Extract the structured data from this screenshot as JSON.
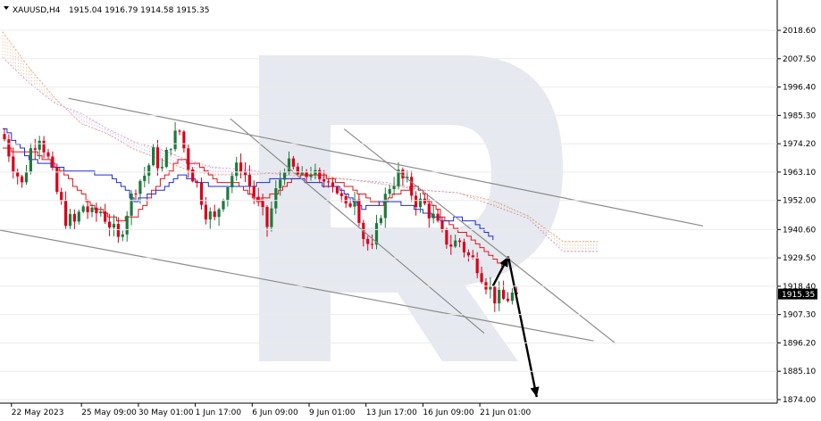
{
  "header": {
    "symbol": "XAUUSD,H4",
    "ohlc": "1915.04 1916.79 1914.58 1915.35"
  },
  "colors": {
    "bull": "#1e7a3c",
    "bear": "#d9001b",
    "tenkan": "#e0151b",
    "kijun": "#1b2bd6",
    "cloud_a": "#e8a070",
    "cloud_b": "#c78ad8",
    "channel": "#8c8c8c",
    "arrow": "#000000",
    "watermark": "#dde1ea",
    "price_tag": "#000000"
  },
  "chart_data": {
    "type": "candlestick",
    "instrument": "XAUUSD",
    "timeframe": "H4",
    "last_price": 1915.35,
    "current_price_label": "1915.35",
    "ylim": [
      1874.0,
      2023.5
    ],
    "y_ticks": [
      2018.6,
      2007.5,
      1996.4,
      1985.3,
      1974.2,
      1963.1,
      1952.0,
      1940.6,
      1929.5,
      1918.4,
      1907.3,
      1896.2,
      1885.1,
      1874.0
    ],
    "y_tick_labels": [
      "2018.60",
      "2007.50",
      "1996.40",
      "1985.30",
      "1974.20",
      "1963.10",
      "1952.00",
      "1940.60",
      "1929.50",
      "1918.40",
      "1907.30",
      "1896.20",
      "1885.10",
      "1874.00"
    ],
    "x_ticks": [
      {
        "label": "22 May 2023",
        "bar": 2
      },
      {
        "label": "25 May 09:00",
        "bar": 18
      },
      {
        "label": "30 May 01:00",
        "bar": 31
      },
      {
        "label": "1 Jun 17:00",
        "bar": 44
      },
      {
        "label": "6 Jun 09:00",
        "bar": 57
      },
      {
        "label": "9 Jun 01:00",
        "bar": 70
      },
      {
        "label": "13 Jun 17:00",
        "bar": 83
      },
      {
        "label": "16 Jun 09:00",
        "bar": 96
      },
      {
        "label": "21 Jun 01:00",
        "bar": 109
      }
    ],
    "total_bars": 118,
    "candle_anchors": [
      [
        0,
        1976
      ],
      [
        2,
        1966
      ],
      [
        4,
        1958
      ],
      [
        6,
        1972
      ],
      [
        8,
        1978
      ],
      [
        10,
        1968
      ],
      [
        12,
        1955
      ],
      [
        14,
        1945
      ],
      [
        16,
        1943
      ],
      [
        18,
        1950
      ],
      [
        20,
        1946
      ],
      [
        22,
        1948
      ],
      [
        24,
        1943
      ],
      [
        26,
        1936
      ],
      [
        28,
        1948
      ],
      [
        30,
        1958
      ],
      [
        32,
        1962
      ],
      [
        34,
        1970
      ],
      [
        36,
        1964
      ],
      [
        38,
        1975
      ],
      [
        40,
        1979
      ],
      [
        42,
        1966
      ],
      [
        44,
        1958
      ],
      [
        46,
        1948
      ],
      [
        48,
        1944
      ],
      [
        50,
        1955
      ],
      [
        52,
        1962
      ],
      [
        54,
        1966
      ],
      [
        56,
        1958
      ],
      [
        58,
        1950
      ],
      [
        60,
        1942
      ],
      [
        62,
        1955
      ],
      [
        64,
        1966
      ],
      [
        66,
        1964
      ],
      [
        68,
        1960
      ],
      [
        70,
        1964
      ],
      [
        72,
        1958
      ],
      [
        74,
        1962
      ],
      [
        76,
        1956
      ],
      [
        78,
        1948
      ],
      [
        80,
        1955
      ],
      [
        82,
        1938
      ],
      [
        84,
        1932
      ],
      [
        86,
        1948
      ],
      [
        88,
        1958
      ],
      [
        90,
        1962
      ],
      [
        92,
        1958
      ],
      [
        94,
        1952
      ],
      [
        96,
        1950
      ],
      [
        98,
        1945
      ],
      [
        100,
        1938
      ],
      [
        102,
        1935
      ],
      [
        104,
        1936
      ],
      [
        106,
        1930
      ],
      [
        108,
        1927
      ],
      [
        110,
        1920
      ],
      [
        112,
        1914
      ],
      [
        114,
        1913
      ],
      [
        116,
        1915
      ],
      [
        117,
        1915.35
      ]
    ],
    "ichimoku": {
      "tenkan_anchors": [
        [
          0,
          1972
        ],
        [
          8,
          1970
        ],
        [
          14,
          1962
        ],
        [
          20,
          1950
        ],
        [
          26,
          1944
        ],
        [
          30,
          1946
        ],
        [
          36,
          1960
        ],
        [
          40,
          1968
        ],
        [
          44,
          1966
        ],
        [
          48,
          1960
        ],
        [
          54,
          1958
        ],
        [
          58,
          1952
        ],
        [
          62,
          1955
        ],
        [
          66,
          1961
        ],
        [
          72,
          1962
        ],
        [
          78,
          1958
        ],
        [
          82,
          1954
        ],
        [
          86,
          1950
        ],
        [
          90,
          1955
        ],
        [
          94,
          1958
        ],
        [
          98,
          1950
        ],
        [
          102,
          1942
        ],
        [
          106,
          1938
        ],
        [
          110,
          1932
        ],
        [
          114,
          1926
        ]
      ],
      "kijun_anchors": [
        [
          0,
          1980
        ],
        [
          6,
          1968
        ],
        [
          14,
          1964
        ],
        [
          24,
          1962
        ],
        [
          30,
          1952
        ],
        [
          36,
          1956
        ],
        [
          40,
          1962
        ],
        [
          48,
          1957
        ],
        [
          56,
          1957
        ],
        [
          62,
          1961
        ],
        [
          68,
          1960
        ],
        [
          76,
          1957
        ],
        [
          82,
          1949
        ],
        [
          88,
          1952
        ],
        [
          94,
          1949
        ],
        [
          100,
          1944
        ],
        [
          104,
          1945
        ],
        [
          108,
          1943
        ],
        [
          112,
          1936
        ]
      ],
      "span_a_anchors": [
        [
          0,
          2018
        ],
        [
          6,
          2004
        ],
        [
          12,
          1992
        ],
        [
          18,
          1982
        ],
        [
          24,
          1978
        ],
        [
          30,
          1972
        ],
        [
          36,
          1968
        ],
        [
          42,
          1964
        ],
        [
          48,
          1962
        ],
        [
          56,
          1962
        ],
        [
          64,
          1963
        ],
        [
          72,
          1962
        ],
        [
          80,
          1960
        ],
        [
          88,
          1958
        ],
        [
          96,
          1956
        ],
        [
          104,
          1955
        ],
        [
          112,
          1952
        ],
        [
          120,
          1946
        ],
        [
          128,
          1936
        ]
      ],
      "span_b_anchors": [
        [
          0,
          2008
        ],
        [
          6,
          1998
        ],
        [
          12,
          1990
        ],
        [
          18,
          1986
        ],
        [
          24,
          1980
        ],
        [
          30,
          1975
        ],
        [
          36,
          1972
        ],
        [
          42,
          1968
        ],
        [
          48,
          1965
        ],
        [
          56,
          1964
        ],
        [
          64,
          1962
        ],
        [
          72,
          1961
        ],
        [
          80,
          1960
        ],
        [
          88,
          1959
        ],
        [
          96,
          1956
        ],
        [
          104,
          1955
        ],
        [
          112,
          1950
        ],
        [
          120,
          1945
        ],
        [
          128,
          1932
        ]
      ]
    },
    "channels": [
      {
        "name": "",
        "from": [
          15,
          1992.0
        ],
        "to": [
          160,
          1942.0
        ]
      },
      {
        "name": "",
        "from": [
          -1,
          1940.5
        ],
        "to": [
          135,
          1897.0
        ]
      },
      {
        "name": "",
        "from": [
          52,
          1984.0
        ],
        "to": [
          110,
          1900.0
        ]
      },
      {
        "name": "",
        "from": [
          78,
          1980.0
        ],
        "to": [
          140,
          1896.0
        ]
      }
    ],
    "forecast_arrows": [
      {
        "from": [
          112,
          1918.5
        ],
        "to": [
          115.5,
          1930.0
        ]
      },
      {
        "from": [
          115.5,
          1930.0
        ],
        "to": [
          122,
          1875.0
        ]
      }
    ]
  }
}
